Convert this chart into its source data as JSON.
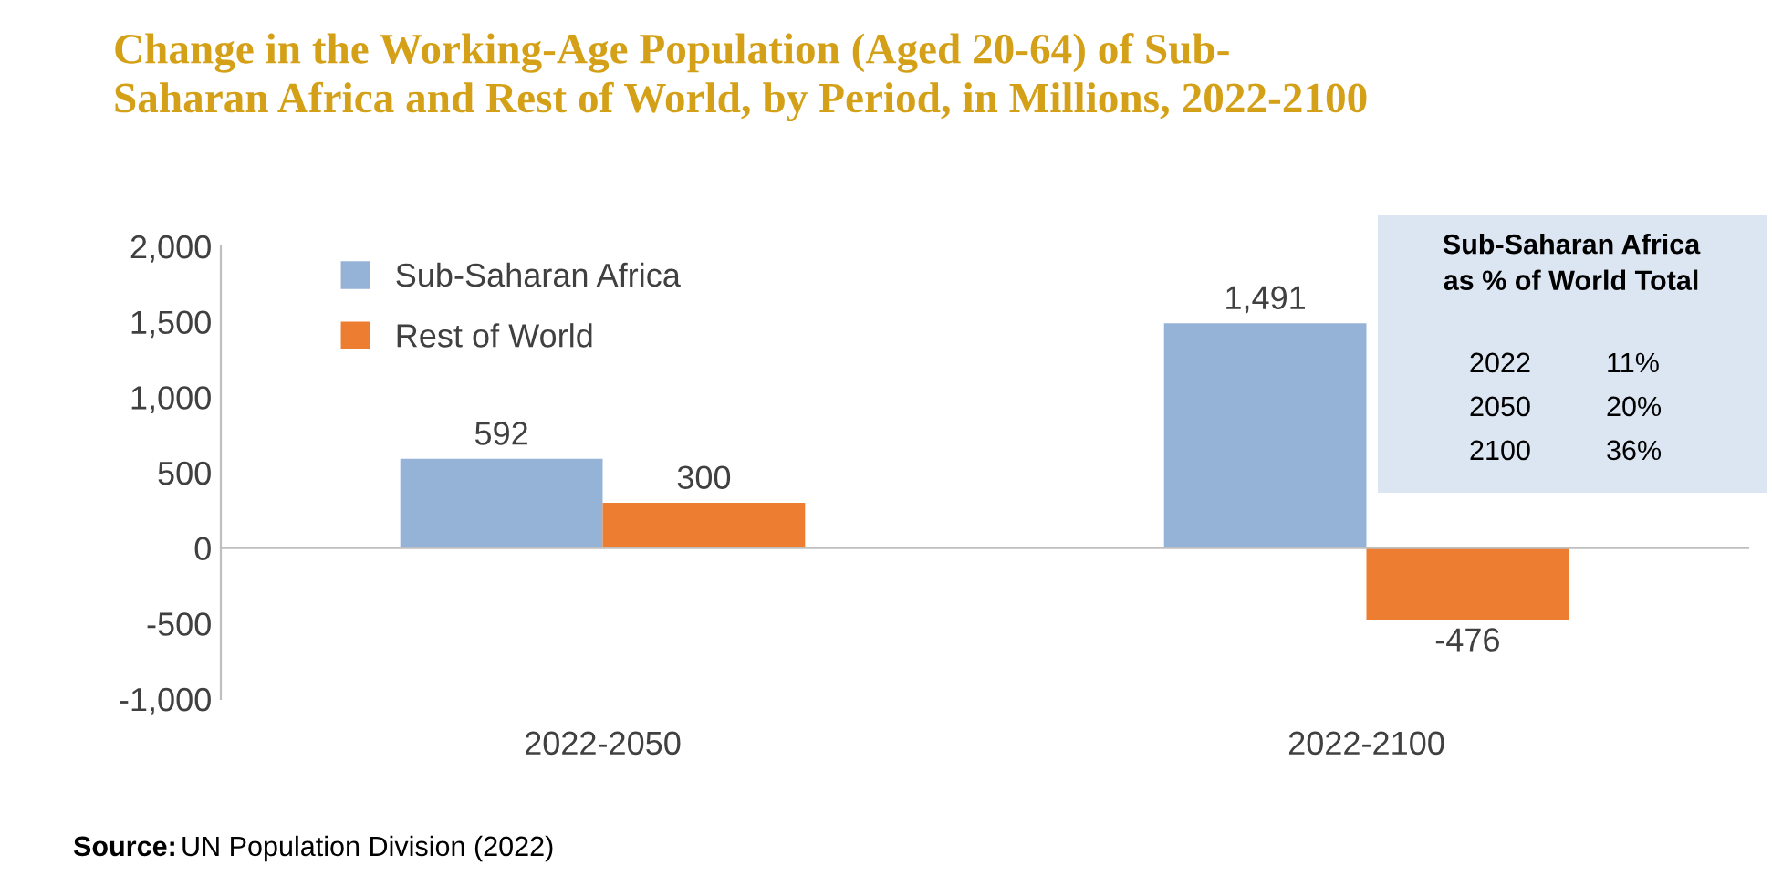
{
  "chart_data": {
    "type": "bar",
    "title": "Change in the Working-Age Population (Aged 20-64) of Sub-\nSaharan Africa and Rest of World, by Period, in Millions, 2022-2100",
    "categories": [
      "2022-2050",
      "2022-2100"
    ],
    "series": [
      {
        "name": "Sub-Saharan Africa",
        "color": "#95b3d7",
        "values": [
          592,
          1491
        ],
        "value_labels": [
          "592",
          "1,491"
        ]
      },
      {
        "name": "Rest of World",
        "color": "#ed7d31",
        "values": [
          300,
          -476
        ],
        "value_labels": [
          "300",
          "-476"
        ]
      }
    ],
    "ylim": [
      -1000,
      2000
    ],
    "yticks": [
      {
        "value": -1000,
        "label": "-1,000"
      },
      -500,
      0,
      500,
      {
        "value": 1000,
        "label": "1,000"
      },
      {
        "value": 1500,
        "label": "1,500"
      },
      {
        "value": 2000,
        "label": "2,000"
      }
    ],
    "legend": "top left",
    "annotations": [
      "Sub-Saharan Africa\nas % of World Total",
      "2022 11%",
      "2050 20%",
      "2100 36%",
      "Source: UN Population Division (2022)"
    ]
  }
}
